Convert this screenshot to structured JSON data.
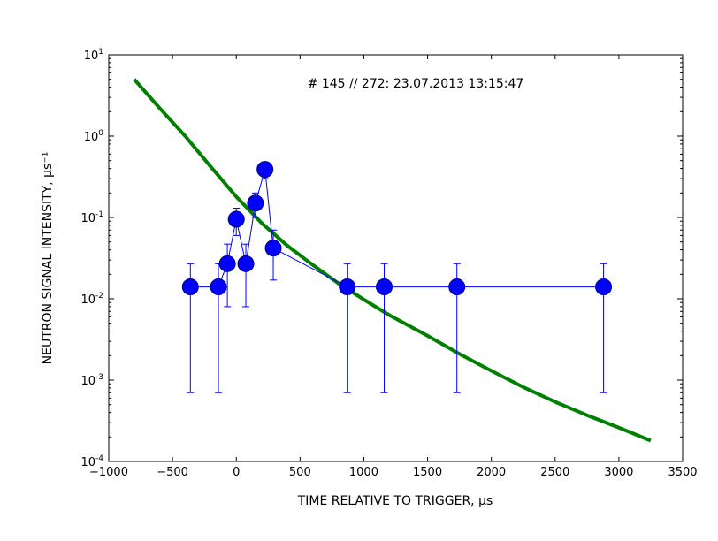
{
  "chart_data": {
    "type": "scatter",
    "title": "# 145 // 272: 23.07.2013 13:15:47",
    "xlabel": "TIME RELATIVE TO TRIGGER, μs",
    "ylabel": "NEUTRON SIGNAL INTENSITY, μs⁻¹",
    "xlim": [
      -1000,
      3500
    ],
    "ylim": [
      0.0001,
      10
    ],
    "yscale": "log",
    "x_ticks": [
      -1000,
      -500,
      0,
      500,
      1000,
      1500,
      2000,
      2500,
      3000,
      3500
    ],
    "x_tick_labels": [
      "−1000",
      "−500",
      "0",
      "500",
      "1000",
      "1500",
      "2000",
      "2500",
      "3000",
      "3500"
    ],
    "y_ticks": [
      {
        "value": 0.0001,
        "base": "10",
        "exp": "-4"
      },
      {
        "value": 0.001,
        "base": "10",
        "exp": "-3"
      },
      {
        "value": 0.01,
        "base": "10",
        "exp": "-2"
      },
      {
        "value": 0.1,
        "base": "10",
        "exp": "-1"
      },
      {
        "value": 1,
        "base": "10",
        "exp": "0"
      },
      {
        "value": 10,
        "base": "10",
        "exp": "1"
      }
    ],
    "grid": false,
    "series": [
      {
        "type": "scatter",
        "color": "#0000ff",
        "marker_edge": "#000080",
        "points": [
          {
            "x": -360,
            "y": 0.014,
            "ylow": 0.0007,
            "yhigh": 0.027
          },
          {
            "x": -140,
            "y": 0.014,
            "ylow": 0.0007,
            "yhigh": 0.027
          },
          {
            "x": -70,
            "y": 0.027,
            "ylow": 0.008,
            "yhigh": 0.047
          },
          {
            "x": 0,
            "y": 0.095,
            "ylow": 0.06,
            "yhigh": 0.13
          },
          {
            "x": 75,
            "y": 0.027,
            "ylow": 0.008,
            "yhigh": 0.047
          },
          {
            "x": 150,
            "y": 0.15,
            "ylow": 0.1,
            "yhigh": 0.2
          },
          {
            "x": 225,
            "y": 0.39,
            "ylow": 0.3,
            "yhigh": 0.48
          },
          {
            "x": 290,
            "y": 0.042,
            "ylow": 0.017,
            "yhigh": 0.07
          },
          {
            "x": 870,
            "y": 0.014,
            "ylow": 0.0007,
            "yhigh": 0.027
          },
          {
            "x": 1160,
            "y": 0.014,
            "ylow": 0.0007,
            "yhigh": 0.027
          },
          {
            "x": 1730,
            "y": 0.014,
            "ylow": 0.0007,
            "yhigh": 0.027
          },
          {
            "x": 2880,
            "y": 0.014,
            "ylow": 0.0007,
            "yhigh": 0.027
          }
        ]
      },
      {
        "type": "line",
        "color": "#008000",
        "points": [
          {
            "x": -800,
            "y": 5.0
          },
          {
            "x": -600,
            "y": 2.2
          },
          {
            "x": -400,
            "y": 1.0
          },
          {
            "x": -200,
            "y": 0.42
          },
          {
            "x": 0,
            "y": 0.18
          },
          {
            "x": 200,
            "y": 0.085
          },
          {
            "x": 400,
            "y": 0.045
          },
          {
            "x": 600,
            "y": 0.026
          },
          {
            "x": 800,
            "y": 0.0155
          },
          {
            "x": 1000,
            "y": 0.0098
          },
          {
            "x": 1200,
            "y": 0.0063
          },
          {
            "x": 1500,
            "y": 0.0035
          },
          {
            "x": 1750,
            "y": 0.0021
          },
          {
            "x": 2000,
            "y": 0.0013
          },
          {
            "x": 2250,
            "y": 0.00082
          },
          {
            "x": 2500,
            "y": 0.00054
          },
          {
            "x": 2750,
            "y": 0.00037
          },
          {
            "x": 3000,
            "y": 0.00026
          },
          {
            "x": 3250,
            "y": 0.00018
          }
        ]
      }
    ]
  }
}
